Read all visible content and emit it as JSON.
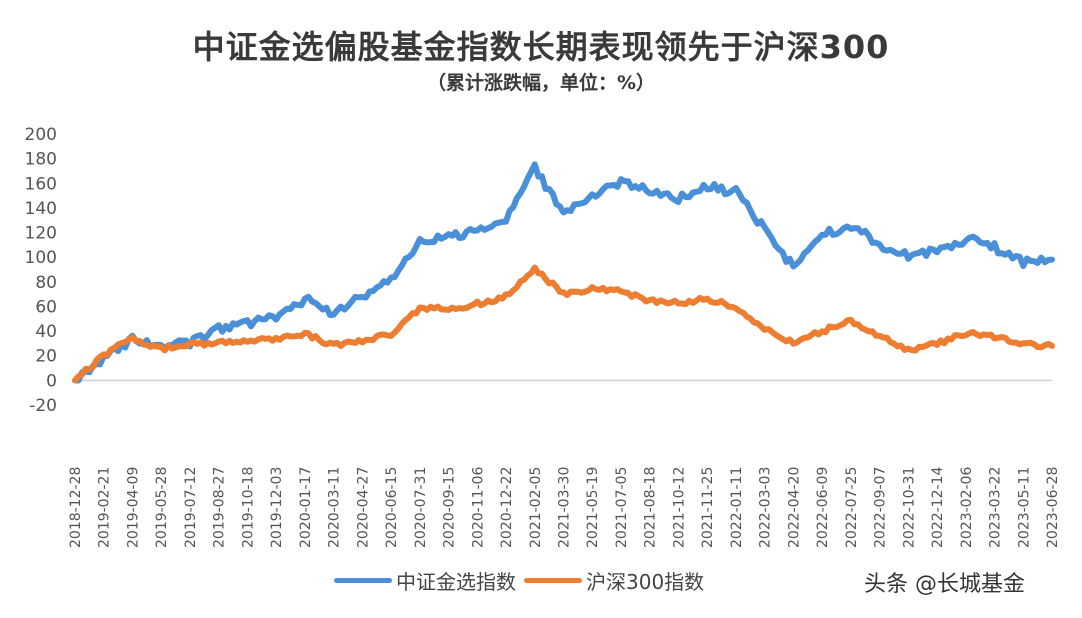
{
  "chart_data": {
    "type": "line",
    "title": "中证金选偏股基金指数长期表现领先于沪深300",
    "subtitle": "（累计涨跌幅，单位：%）",
    "xlabel": "",
    "ylabel": "",
    "ylim": [
      -20,
      200
    ],
    "yticks": [
      200,
      180,
      160,
      140,
      120,
      100,
      80,
      60,
      40,
      20,
      0,
      -20
    ],
    "grid": false,
    "legend_position": "bottom",
    "categories": [
      "2018-12-28",
      "2019-02-21",
      "2019-04-09",
      "2019-05-28",
      "2019-07-12",
      "2019-08-27",
      "2019-10-18",
      "2019-12-03",
      "2020-01-17",
      "2020-03-11",
      "2020-04-27",
      "2020-06-15",
      "2020-07-31",
      "2020-09-15",
      "2020-11-06",
      "2020-12-22",
      "2021-02-05",
      "2021-03-30",
      "2021-05-19",
      "2021-07-05",
      "2021-08-18",
      "2021-10-12",
      "2021-11-25",
      "2022-01-11",
      "2022-03-03",
      "2022-04-20",
      "2022-06-09",
      "2022-07-25",
      "2022-09-07",
      "2022-10-31",
      "2022-12-14",
      "2023-02-06",
      "2023-03-22",
      "2023-05-11",
      "2023-06-28"
    ],
    "series": [
      {
        "name": "中证金选指数",
        "color": "#4a90d9",
        "values": [
          0,
          18,
          34,
          27,
          31,
          42,
          46,
          52,
          66,
          55,
          68,
          82,
          112,
          118,
          120,
          130,
          172,
          135,
          150,
          160,
          155,
          148,
          157,
          153,
          122,
          92,
          118,
          126,
          110,
          102,
          104,
          115,
          108,
          96,
          98
        ]
      },
      {
        "name": "沪深300指数",
        "color": "#ed7d31",
        "values": [
          0,
          20,
          35,
          25,
          30,
          30,
          32,
          33,
          38,
          28,
          32,
          38,
          58,
          58,
          62,
          68,
          90,
          70,
          74,
          72,
          65,
          63,
          66,
          60,
          42,
          30,
          40,
          48,
          36,
          24,
          30,
          38,
          35,
          30,
          28
        ]
      }
    ]
  },
  "watermark": "头条 @长城基金"
}
